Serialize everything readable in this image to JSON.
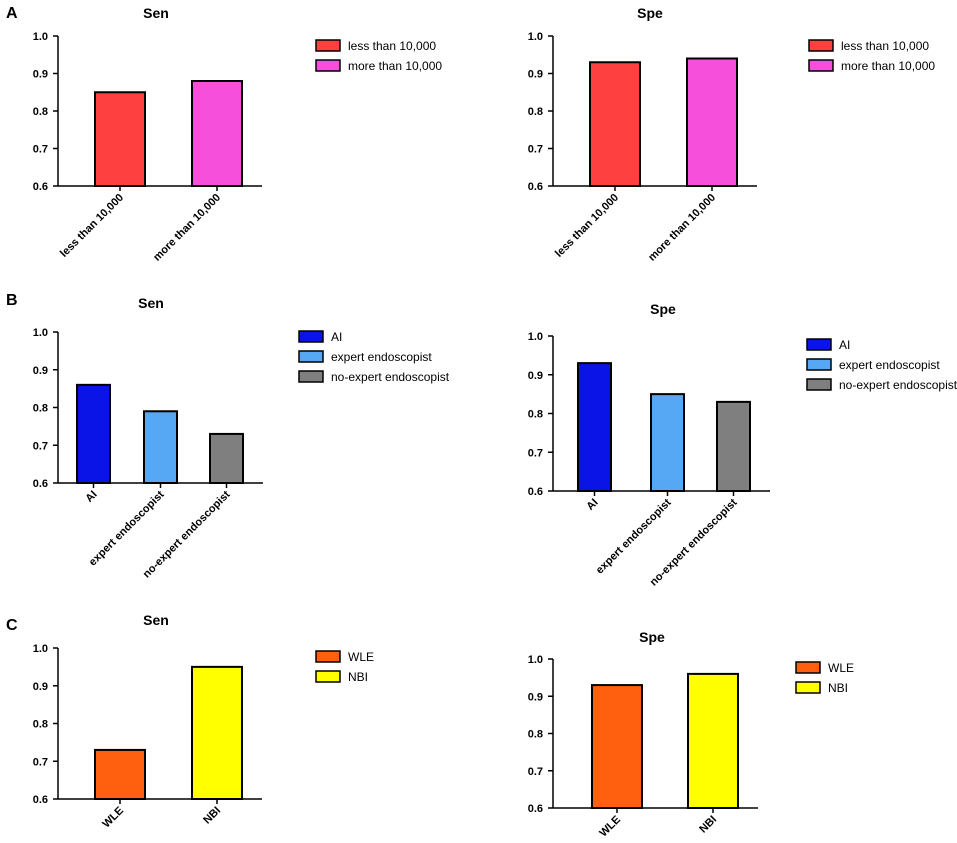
{
  "panels": [
    "A",
    "B",
    "C"
  ],
  "chart_data": [
    {
      "type": "bar",
      "panel": "A",
      "title": "Sen",
      "categories": [
        "less than 10,000",
        "more than 10,000"
      ],
      "values": [
        0.85,
        0.88
      ],
      "colors": [
        "#ff4040",
        "#f64fdc"
      ],
      "ylim": [
        0.6,
        1.0
      ],
      "yticks": [
        "0.6",
        "0.7",
        "0.8",
        "0.9",
        "1.0"
      ],
      "legend": [
        "less than 10,000",
        "more than 10,000"
      ],
      "legend_position": "right"
    },
    {
      "type": "bar",
      "panel": "A",
      "title": "Spe",
      "categories": [
        "less than 10,000",
        "more than 10,000"
      ],
      "values": [
        0.93,
        0.94
      ],
      "colors": [
        "#ff4040",
        "#f64fdc"
      ],
      "ylim": [
        0.6,
        1.0
      ],
      "yticks": [
        "0.6",
        "0.7",
        "0.8",
        "0.9",
        "1.0"
      ],
      "legend": [
        "less than 10,000",
        "more than 10,000"
      ],
      "legend_position": "right"
    },
    {
      "type": "bar",
      "panel": "B",
      "title": "Sen",
      "categories": [
        "AI",
        "expert endoscopist",
        "no-expert endoscopist"
      ],
      "values": [
        0.86,
        0.79,
        0.73
      ],
      "colors": [
        "#0a14e6",
        "#56a8f4",
        "#7f7f7f"
      ],
      "ylim": [
        0.6,
        1.0
      ],
      "yticks": [
        "0.6",
        "0.7",
        "0.8",
        "0.9",
        "1.0"
      ],
      "legend": [
        "AI",
        "expert endoscopist",
        "no-expert endoscopist"
      ],
      "legend_position": "right"
    },
    {
      "type": "bar",
      "panel": "B",
      "title": "Spe",
      "categories": [
        "AI",
        "expert endoscopist",
        "no-expert endoscopist"
      ],
      "values": [
        0.93,
        0.85,
        0.83
      ],
      "colors": [
        "#0a14e6",
        "#56a8f4",
        "#7f7f7f"
      ],
      "ylim": [
        0.6,
        1.0
      ],
      "yticks": [
        "0.6",
        "0.7",
        "0.8",
        "0.9",
        "1.0"
      ],
      "legend": [
        "AI",
        "expert endoscopist",
        "no-expert endoscopist"
      ],
      "legend_position": "right"
    },
    {
      "type": "bar",
      "panel": "C",
      "title": "Sen",
      "categories": [
        "WLE",
        "NBI"
      ],
      "values": [
        0.73,
        0.95
      ],
      "colors": [
        "#ff6010",
        "#ffff00"
      ],
      "ylim": [
        0.6,
        1.0
      ],
      "yticks": [
        "0.6",
        "0.7",
        "0.8",
        "0.9",
        "1.0"
      ],
      "legend": [
        "WLE",
        "NBI"
      ],
      "legend_position": "right"
    },
    {
      "type": "bar",
      "panel": "C",
      "title": "Spe",
      "categories": [
        "WLE",
        "NBI"
      ],
      "values": [
        0.93,
        0.96
      ],
      "colors": [
        "#ff6010",
        "#ffff00"
      ],
      "ylim": [
        0.6,
        1.0
      ],
      "yticks": [
        "0.6",
        "0.7",
        "0.8",
        "0.9",
        "1.0"
      ],
      "legend": [
        "WLE",
        "NBI"
      ],
      "legend_position": "right"
    }
  ]
}
